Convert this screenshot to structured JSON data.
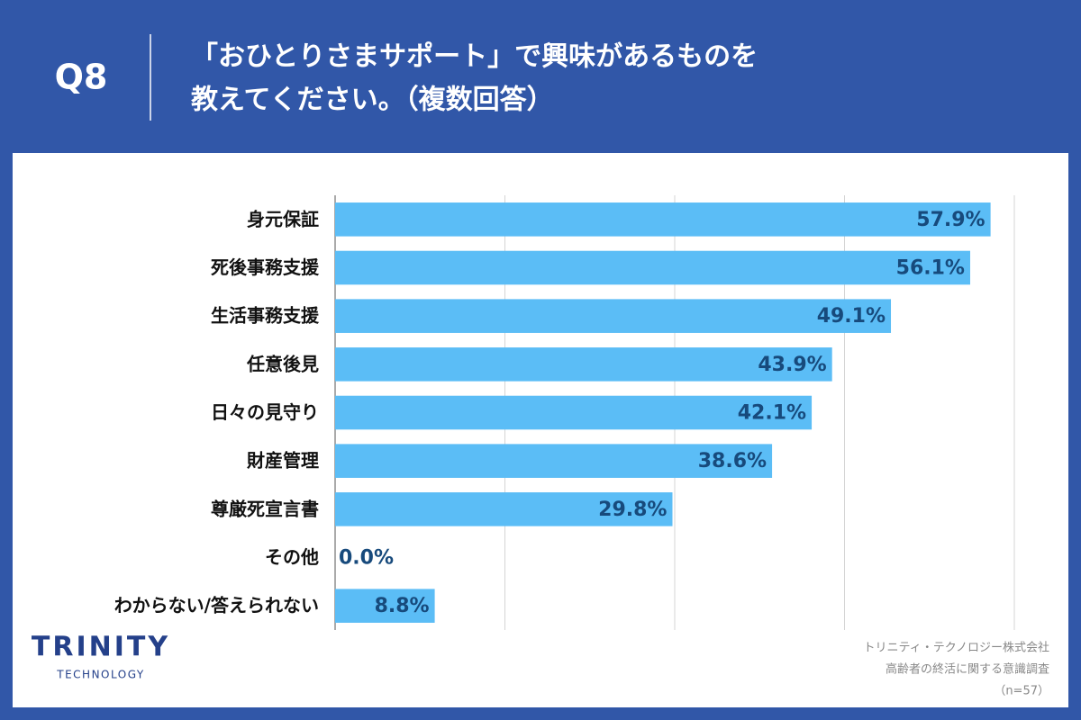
{
  "header": {
    "question": "Q8",
    "title": [
      "「おひとりさまサポート」で興味があるものを",
      "教えてください。（複数回答）"
    ]
  },
  "chart_data": {
    "type": "hbar",
    "categories": [
      "身元保証",
      "死後事務支援",
      "生活事務支援",
      "任意後見",
      "日々の見守り",
      "財産管理",
      "尊厳死宣言書",
      "その他",
      "わからない/答えられない"
    ],
    "values": [
      57.9,
      56.1,
      49.1,
      43.9,
      42.1,
      38.6,
      29.8,
      0.0,
      8.8
    ],
    "value_labels": [
      "57.9%",
      "56.1%",
      "49.1%",
      "43.9%",
      "42.1%",
      "38.6%",
      "29.8%",
      "0.0%",
      "8.8%"
    ],
    "color": "#5bbdf6",
    "label_color": "#174a7c",
    "xlim": [
      0,
      60
    ],
    "xticks": [
      0,
      15,
      30,
      45,
      60
    ],
    "grid": true
  },
  "footer": {
    "logo": "TRINITY",
    "logo_sub": "TECHNOLOGY",
    "source": [
      "トリニティ・テクノロジー株式会社",
      "高齢者の終活に関する意識調査",
      "（n=57）"
    ]
  }
}
